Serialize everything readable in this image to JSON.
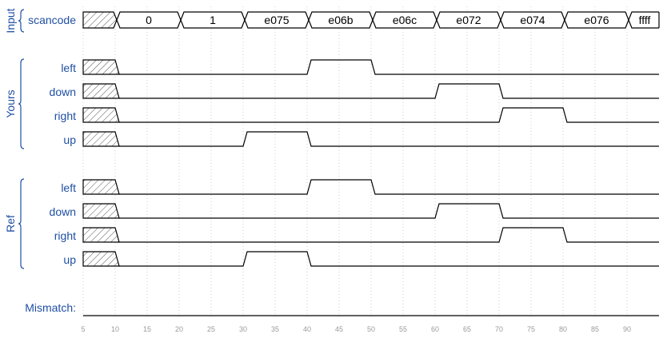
{
  "groups": [
    {
      "label": "Input",
      "signals": [
        "scancode"
      ]
    },
    {
      "label": "Yours",
      "signals": [
        "left",
        "down",
        "right",
        "up"
      ]
    },
    {
      "label": "Ref",
      "signals": [
        "left",
        "down",
        "right",
        "up"
      ]
    }
  ],
  "mismatch_label": "Mismatch:",
  "time_axis": {
    "ticks": [
      5,
      10,
      15,
      20,
      25,
      30,
      35,
      40,
      45,
      50,
      55,
      60,
      65,
      70,
      75,
      80,
      85,
      90
    ],
    "range": [
      5,
      95
    ]
  },
  "scancode": {
    "values": [
      "0",
      "1",
      "e075",
      "e06b",
      "e06c",
      "e072",
      "e074",
      "e076",
      "ffff"
    ],
    "changes": [
      10,
      20,
      30,
      40,
      50,
      60,
      70,
      80,
      90
    ]
  },
  "yours": {
    "left": [
      {
        "from": 40,
        "to": 50
      }
    ],
    "down": [
      {
        "from": 60,
        "to": 70
      }
    ],
    "right": [
      {
        "from": 70,
        "to": 80
      }
    ],
    "up": [
      {
        "from": 30,
        "to": 40
      }
    ]
  },
  "ref": {
    "left": [
      {
        "from": 40,
        "to": 50
      }
    ],
    "down": [
      {
        "from": 60,
        "to": 70
      }
    ],
    "right": [
      {
        "from": 70,
        "to": 80
      }
    ],
    "up": [
      {
        "from": 30,
        "to": 40
      }
    ]
  },
  "unknown_until": 10
}
